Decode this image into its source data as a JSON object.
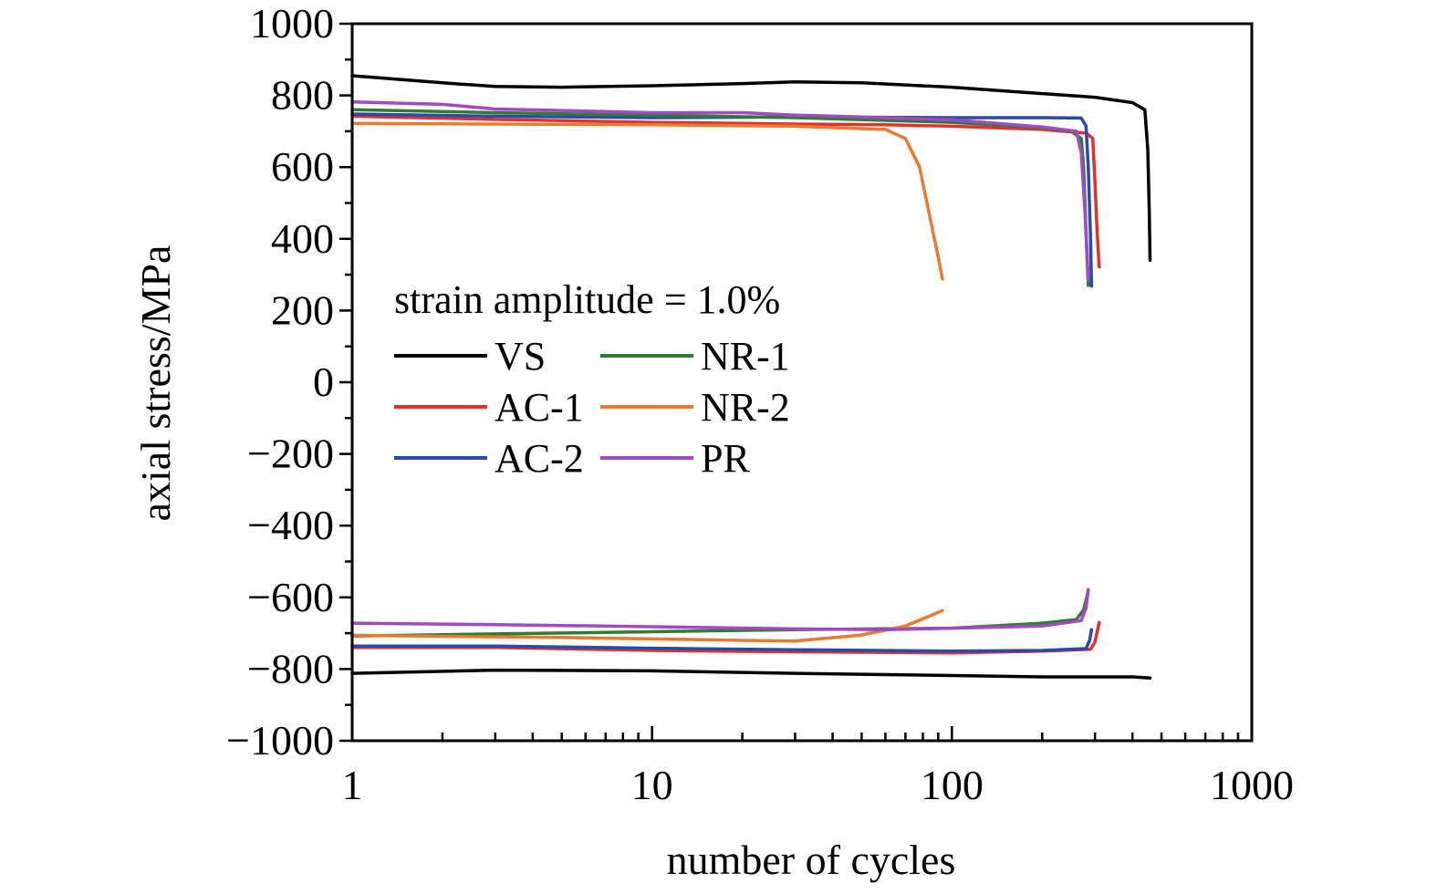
{
  "chart_data": {
    "type": "line",
    "xlabel": "number of cycles",
    "ylabel": "axial stress/MPa",
    "xscale": "log",
    "xlim": [
      1,
      1000
    ],
    "ylim": [
      -1000,
      1000
    ],
    "xticks": [
      1,
      10,
      100,
      1000
    ],
    "xtick_labels": [
      "1",
      "10",
      "100",
      "1000"
    ],
    "yticks": [
      1000,
      800,
      600,
      400,
      200,
      0,
      -200,
      -400,
      -600,
      -800,
      -1000
    ],
    "ytick_labels": [
      "1000",
      "800",
      "600",
      "400",
      "200",
      "0",
      "−200",
      "−400",
      "−600",
      "−800",
      "−1000"
    ],
    "annotation": "strain amplitude = 1.0%",
    "grid": false,
    "legend_position": "center-left",
    "series": [
      {
        "name": "VS",
        "color": "#000000",
        "tension": [
          [
            1,
            855
          ],
          [
            2,
            835
          ],
          [
            3,
            825
          ],
          [
            5,
            823
          ],
          [
            10,
            827
          ],
          [
            20,
            833
          ],
          [
            30,
            838
          ],
          [
            50,
            835
          ],
          [
            100,
            823
          ],
          [
            200,
            805
          ],
          [
            300,
            795
          ],
          [
            400,
            780
          ],
          [
            440,
            760
          ],
          [
            450,
            650
          ],
          [
            455,
            480
          ],
          [
            458,
            340
          ]
        ],
        "compression": [
          [
            1,
            -812
          ],
          [
            3,
            -803
          ],
          [
            10,
            -805
          ],
          [
            30,
            -812
          ],
          [
            100,
            -818
          ],
          [
            200,
            -822
          ],
          [
            300,
            -822
          ],
          [
            400,
            -822
          ],
          [
            458,
            -825
          ]
        ]
      },
      {
        "name": "AC-1",
        "color": "#e0322b",
        "tension": [
          [
            1,
            742
          ],
          [
            3,
            733
          ],
          [
            10,
            725
          ],
          [
            30,
            720
          ],
          [
            60,
            718
          ],
          [
            100,
            714
          ],
          [
            200,
            705
          ],
          [
            280,
            695
          ],
          [
            295,
            680
          ],
          [
            300,
            560
          ],
          [
            305,
            420
          ],
          [
            310,
            322
          ]
        ],
        "compression": [
          [
            1,
            -740
          ],
          [
            3,
            -740
          ],
          [
            10,
            -748
          ],
          [
            30,
            -752
          ],
          [
            100,
            -755
          ],
          [
            200,
            -750
          ],
          [
            290,
            -745
          ],
          [
            300,
            -725
          ],
          [
            310,
            -670
          ]
        ]
      },
      {
        "name": "AC-2",
        "color": "#2b4aa8",
        "tension": [
          [
            1,
            748
          ],
          [
            3,
            742
          ],
          [
            10,
            738
          ],
          [
            30,
            740
          ],
          [
            100,
            738
          ],
          [
            200,
            738
          ],
          [
            270,
            737
          ],
          [
            280,
            715
          ],
          [
            285,
            600
          ],
          [
            290,
            400
          ],
          [
            292,
            268
          ]
        ],
        "compression": [
          [
            1,
            -736
          ],
          [
            3,
            -736
          ],
          [
            10,
            -742
          ],
          [
            30,
            -746
          ],
          [
            100,
            -750
          ],
          [
            200,
            -748
          ],
          [
            280,
            -743
          ],
          [
            288,
            -720
          ],
          [
            292,
            -690
          ]
        ]
      },
      {
        "name": "NR-1",
        "color": "#2e7d32",
        "tension": [
          [
            1,
            760
          ],
          [
            3,
            752
          ],
          [
            10,
            745
          ],
          [
            30,
            738
          ],
          [
            100,
            725
          ],
          [
            200,
            710
          ],
          [
            250,
            700
          ],
          [
            270,
            680
          ],
          [
            275,
            600
          ],
          [
            280,
            420
          ],
          [
            285,
            270
          ]
        ],
        "compression": [
          [
            1,
            -708
          ],
          [
            3,
            -702
          ],
          [
            10,
            -696
          ],
          [
            30,
            -690
          ],
          [
            100,
            -686
          ],
          [
            200,
            -672
          ],
          [
            260,
            -662
          ],
          [
            275,
            -635
          ],
          [
            285,
            -582
          ]
        ]
      },
      {
        "name": "NR-2",
        "color": "#e87b30",
        "tension": [
          [
            1,
            722
          ],
          [
            3,
            720
          ],
          [
            10,
            718
          ],
          [
            30,
            714
          ],
          [
            60,
            705
          ],
          [
            70,
            680
          ],
          [
            78,
            600
          ],
          [
            85,
            450
          ],
          [
            90,
            350
          ],
          [
            93,
            288
          ]
        ],
        "compression": [
          [
            1,
            -706
          ],
          [
            5,
            -712
          ],
          [
            10,
            -716
          ],
          [
            20,
            -720
          ],
          [
            30,
            -722
          ],
          [
            50,
            -705
          ],
          [
            70,
            -680
          ],
          [
            80,
            -660
          ],
          [
            93,
            -637
          ]
        ]
      },
      {
        "name": "PR",
        "color": "#a14ac4",
        "tension": [
          [
            1,
            782
          ],
          [
            2,
            775
          ],
          [
            3,
            762
          ],
          [
            10,
            752
          ],
          [
            20,
            752
          ],
          [
            30,
            745
          ],
          [
            50,
            740
          ],
          [
            100,
            732
          ],
          [
            200,
            712
          ],
          [
            260,
            700
          ],
          [
            270,
            640
          ],
          [
            278,
            470
          ],
          [
            285,
            285
          ]
        ],
        "compression": [
          [
            1,
            -672
          ],
          [
            3,
            -676
          ],
          [
            10,
            -682
          ],
          [
            30,
            -688
          ],
          [
            60,
            -690
          ],
          [
            100,
            -686
          ],
          [
            200,
            -680
          ],
          [
            270,
            -665
          ],
          [
            280,
            -630
          ],
          [
            285,
            -578
          ]
        ]
      }
    ]
  }
}
